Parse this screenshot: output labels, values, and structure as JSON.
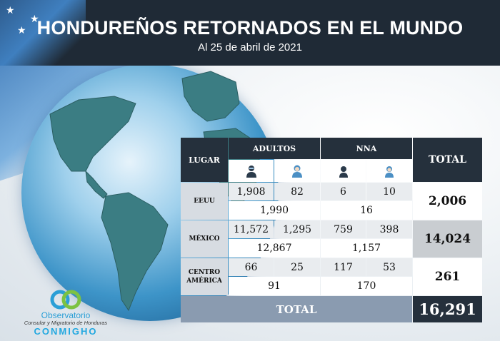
{
  "header": {
    "title": "HONDUREÑOS RETORNADOS EN EL MUNDO",
    "subtitle": "Al 25 de abril de 2021"
  },
  "colors": {
    "header_bg": "#1f2a36",
    "table_dark": "#25303c",
    "total_bar": "#8a9bb0",
    "lugar_bg": "#d7dce2"
  },
  "table": {
    "col_lugar": "LUGAR",
    "col_adultos": "ADULTOS",
    "col_nna": "NNA",
    "col_total": "TOTAL",
    "icons": [
      "adult-male-icon",
      "adult-female-icon",
      "child-male-icon",
      "child-female-icon"
    ],
    "rows": [
      {
        "lugar": "EEUU",
        "am": "1,908",
        "af": "82",
        "nm": "6",
        "nf": "10",
        "adultos": "1,990",
        "nna": "16",
        "total": "2,006"
      },
      {
        "lugar": "MÉXICO",
        "am": "11,572",
        "af": "1,295",
        "nm": "759",
        "nf": "398",
        "adultos": "12,867",
        "nna": "1,157",
        "total": "14,024"
      },
      {
        "lugar": "CENTRO AMÉRICA",
        "am": "66",
        "af": "25",
        "nm": "117",
        "nf": "53",
        "adultos": "91",
        "nna": "170",
        "total": "261"
      }
    ],
    "total_label": "TOTAL",
    "total_value": "16,291"
  },
  "logo": {
    "line1": "Observatorio",
    "line2": "Consular y Migratorio de Honduras",
    "line3": "CONMIGHO"
  }
}
